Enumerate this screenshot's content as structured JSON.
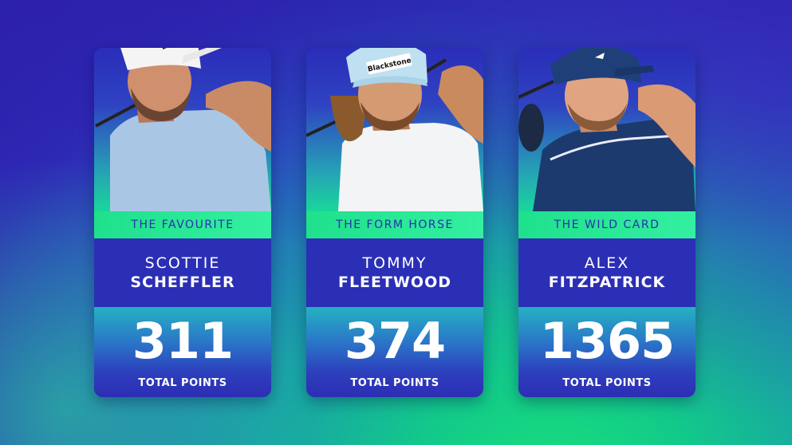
{
  "cards": [
    {
      "label": "THE FAVOURITE",
      "first_name": "SCOTTIE",
      "last_name": "SCHEFFLER",
      "points": "311",
      "points_label": "TOTAL POINTS"
    },
    {
      "label": "THE FORM HORSE",
      "first_name": "TOMMY",
      "last_name": "FLEETWOOD",
      "points": "374",
      "points_label": "TOTAL POINTS",
      "cap_logo": "Blackstone"
    },
    {
      "label": "THE WILD CARD",
      "first_name": "ALEX",
      "last_name": "FITZPATRICK",
      "points": "1365",
      "points_label": "TOTAL POINTS"
    }
  ],
  "colors": {
    "card_blue": "#2c2eb8",
    "label_green": "#1fe08c",
    "label_text": "#2a2fb0",
    "text_white": "#ffffff"
  }
}
